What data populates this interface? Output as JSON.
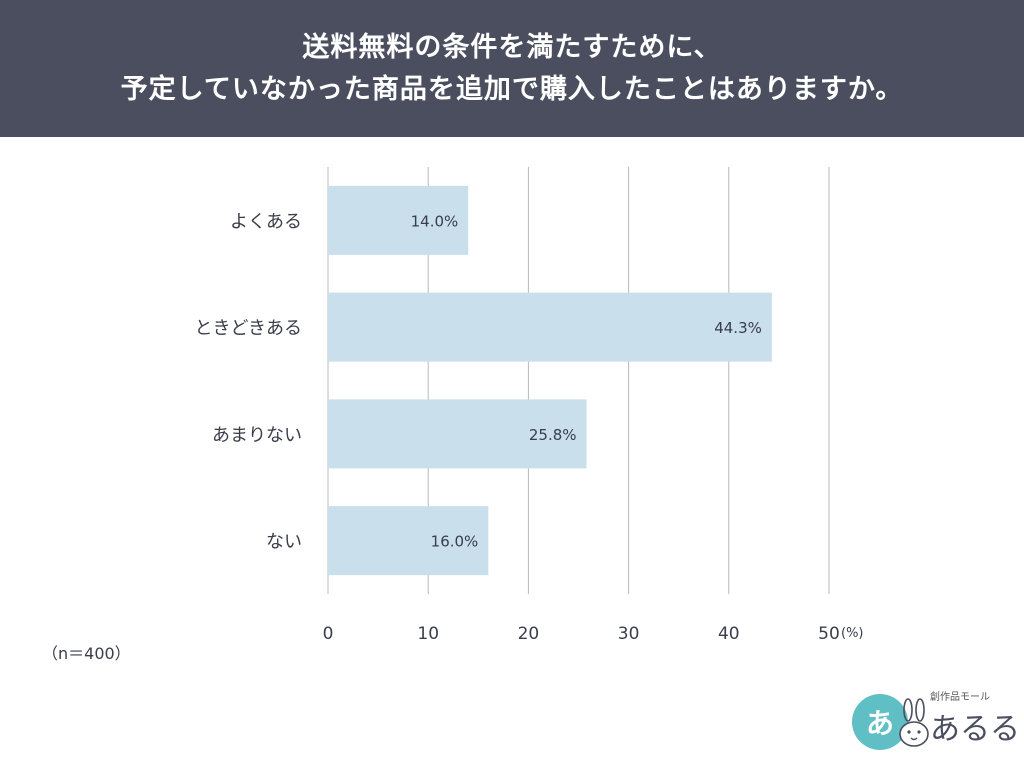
{
  "header": {
    "title_line1": "送料無料の条件を満たすために、",
    "title_line2": "予定していなかった商品を追加で購入したことはありますか。"
  },
  "chart_data": {
    "type": "bar",
    "orientation": "horizontal",
    "categories": [
      "よくある",
      "ときどきある",
      "あまりない",
      "ない"
    ],
    "values": [
      14.0,
      44.3,
      25.8,
      16.0
    ],
    "value_labels": [
      "14.0%",
      "44.3%",
      "25.8%",
      "16.0%"
    ],
    "x_ticks": [
      "0",
      "10",
      "20",
      "30",
      "40",
      "50"
    ],
    "x_unit": "(%)",
    "xlim": [
      0,
      50
    ],
    "grid": true,
    "bar_color": "#c9dfec",
    "grid_color": "#b8b8b8"
  },
  "sample_size": "（n＝400）",
  "logo": {
    "circle_text": "あ",
    "tagline": "創作品モール",
    "name": "あるる",
    "circle_color": "#5fbfc4"
  }
}
